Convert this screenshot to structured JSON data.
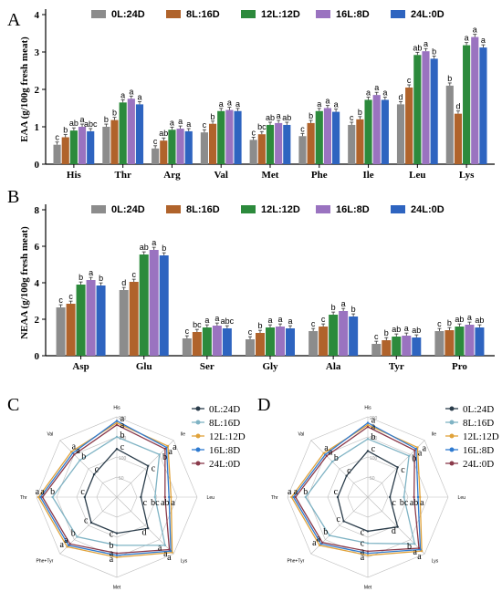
{
  "panels": {
    "A": "A",
    "B": "B",
    "C": "C",
    "D": "D"
  },
  "colors": {
    "0L:24D": "#8c8c8c",
    "8L:16D": "#b0632b",
    "12L:12D": "#2c8a3c",
    "16L:8D": "#9a73c0",
    "24L:0D": "#2e64c0"
  },
  "chart_data": [
    {
      "id": "A",
      "type": "bar",
      "ylabel": "EAA (g/100g fresh meat)",
      "ylim": [
        0,
        4
      ],
      "yticks": [
        "0",
        "1",
        "2",
        "3",
        "4"
      ],
      "legend": [
        "0L:24D",
        "8L:16D",
        "12L:12D",
        "16L:8D",
        "24L:0D"
      ],
      "categories": [
        "His",
        "Thr",
        "Arg",
        "Val",
        "Met",
        "Phe",
        "Ile",
        "Leu",
        "Lys"
      ],
      "series": [
        {
          "name": "0L:24D",
          "values": [
            0.52,
            1.0,
            0.42,
            0.85,
            0.65,
            0.75,
            1.05,
            1.6,
            2.1
          ],
          "letters": [
            "c",
            "b",
            "c",
            "c",
            "c",
            "c",
            "c",
            "d",
            "b"
          ]
        },
        {
          "name": "8L:16D",
          "values": [
            0.72,
            1.18,
            0.63,
            1.08,
            0.8,
            1.1,
            1.2,
            2.05,
            1.35
          ],
          "letters": [
            "b",
            "b",
            "ab",
            "b",
            "bc",
            "b",
            "b",
            "c",
            "d"
          ]
        },
        {
          "name": "12L:12D",
          "values": [
            0.9,
            1.65,
            0.92,
            1.42,
            1.05,
            1.42,
            1.72,
            2.92,
            3.18
          ],
          "letters": [
            "ab",
            "a",
            "a",
            "a",
            "ab",
            "a",
            "a",
            "ab",
            "a"
          ]
        },
        {
          "name": "16L:8D",
          "values": [
            1.0,
            1.75,
            0.95,
            1.45,
            1.1,
            1.5,
            1.85,
            3.02,
            3.4
          ],
          "letters": [
            "a",
            "a",
            "a",
            "a",
            "a",
            "a",
            "a",
            "a",
            "a"
          ]
        },
        {
          "name": "24L:0D",
          "values": [
            0.88,
            1.6,
            0.88,
            1.42,
            1.05,
            1.4,
            1.72,
            2.82,
            3.12
          ],
          "letters": [
            "abc",
            "a",
            "a",
            "a",
            "ab",
            "a",
            "a",
            "b",
            "a"
          ]
        }
      ]
    },
    {
      "id": "B",
      "type": "bar",
      "ylabel": "NEAA (g/100g fresh meat)",
      "ylim": [
        0,
        8
      ],
      "yticks": [
        "0",
        "2",
        "4",
        "6",
        "8"
      ],
      "legend": [
        "0L:24D",
        "8L:16D",
        "12L:12D",
        "16L:8D",
        "24L:0D"
      ],
      "categories": [
        "Asp",
        "Glu",
        "Ser",
        "Gly",
        "Ala",
        "Tyr",
        "Pro"
      ],
      "series": [
        {
          "name": "0L:24D",
          "values": [
            2.65,
            3.6,
            0.95,
            0.9,
            1.35,
            0.65,
            1.35
          ],
          "letters": [
            "c",
            "d",
            "c",
            "c",
            "c",
            "c",
            "c"
          ]
        },
        {
          "name": "8L:16D",
          "values": [
            2.85,
            4.05,
            1.3,
            1.25,
            1.6,
            0.85,
            1.4
          ],
          "letters": [
            "c",
            "c",
            "bc",
            "b",
            "c",
            "b",
            "b"
          ]
        },
        {
          "name": "12L:12D",
          "values": [
            3.9,
            5.55,
            1.55,
            1.55,
            2.25,
            1.05,
            1.6
          ],
          "letters": [
            "b",
            "ab",
            "a",
            "a",
            "b",
            "ab",
            "ab"
          ]
        },
        {
          "name": "16L:8D",
          "values": [
            4.15,
            5.8,
            1.65,
            1.6,
            2.45,
            1.1,
            1.7
          ],
          "letters": [
            "a",
            "a",
            "a",
            "a",
            "a",
            "a",
            "a"
          ]
        },
        {
          "name": "24L:0D",
          "values": [
            3.85,
            5.5,
            1.5,
            1.5,
            2.15,
            1.0,
            1.55
          ],
          "letters": [
            "b",
            "b",
            "abc",
            "a",
            "b",
            "ab",
            "ab"
          ]
        }
      ]
    },
    {
      "id": "C",
      "type": "radar",
      "axes": [
        "His",
        "Ile",
        "Leu",
        "Lys",
        "Met",
        "Phe+Tyr",
        "Thr",
        "Val"
      ],
      "ring_labels": [
        "50",
        "100",
        "150",
        "200"
      ],
      "max": 200,
      "legend": [
        "0L:24D",
        "8L:16D",
        "12L:12D",
        "16L:8D",
        "24L:0D"
      ],
      "series": [
        {
          "name": "0L:24D",
          "values": [
            120,
            110,
            60,
            110,
            90,
            90,
            80,
            80
          ]
        },
        {
          "name": "8L:16D",
          "values": [
            150,
            150,
            95,
            170,
            120,
            140,
            160,
            130
          ]
        },
        {
          "name": "12L:12D",
          "values": [
            185,
            180,
            135,
            195,
            150,
            175,
            195,
            160
          ]
        },
        {
          "name": "16L:8D",
          "values": [
            190,
            175,
            130,
            190,
            145,
            170,
            190,
            155
          ]
        },
        {
          "name": "24L:0D",
          "values": [
            180,
            170,
            120,
            185,
            140,
            165,
            185,
            150
          ]
        }
      ],
      "letters": [
        {
          "axis": 0,
          "r": 196,
          "t": "a"
        },
        {
          "axis": 0,
          "r": 180,
          "t": "a"
        },
        {
          "axis": 0,
          "r": 155,
          "t": "b"
        },
        {
          "axis": 0,
          "r": 125,
          "t": "c"
        },
        {
          "axis": 1,
          "r": 190,
          "t": "a"
        },
        {
          "axis": 1,
          "r": 175,
          "t": "a"
        },
        {
          "axis": 1,
          "r": 155,
          "t": "b"
        },
        {
          "axis": 1,
          "r": 115,
          "t": "c"
        },
        {
          "axis": 2,
          "r": 140,
          "t": "a"
        },
        {
          "axis": 2,
          "r": 120,
          "t": "ab"
        },
        {
          "axis": 2,
          "r": 95,
          "t": "bc"
        },
        {
          "axis": 2,
          "r": 70,
          "t": "c"
        },
        {
          "axis": 3,
          "r": 198,
          "t": "a"
        },
        {
          "axis": 3,
          "r": 185,
          "t": "a"
        },
        {
          "axis": 3,
          "r": 165,
          "t": "a"
        },
        {
          "axis": 3,
          "r": 110,
          "t": "d"
        },
        {
          "axis": 4,
          "r": 155,
          "t": "a"
        },
        {
          "axis": 4,
          "r": 140,
          "t": "a"
        },
        {
          "axis": 4,
          "r": 120,
          "t": "b"
        },
        {
          "axis": 4,
          "r": 92,
          "t": "c"
        },
        {
          "axis": 5,
          "r": 180,
          "t": "a"
        },
        {
          "axis": 5,
          "r": 165,
          "t": "a"
        },
        {
          "axis": 5,
          "r": 140,
          "t": "b"
        },
        {
          "axis": 5,
          "r": 95,
          "t": "c"
        },
        {
          "axis": 6,
          "r": 198,
          "t": "a"
        },
        {
          "axis": 6,
          "r": 185,
          "t": "a"
        },
        {
          "axis": 6,
          "r": 160,
          "t": "b"
        },
        {
          "axis": 6,
          "r": 85,
          "t": "c"
        },
        {
          "axis": 7,
          "r": 165,
          "t": "a"
        },
        {
          "axis": 7,
          "r": 150,
          "t": "a"
        },
        {
          "axis": 7,
          "r": 130,
          "t": "b"
        },
        {
          "axis": 7,
          "r": 85,
          "t": "c"
        }
      ]
    },
    {
      "id": "D",
      "type": "radar",
      "axes": [
        "His",
        "Ile",
        "Leu",
        "Lys",
        "Met",
        "Phe+Tyr",
        "Thr",
        "Val"
      ],
      "ring_labels": [
        "50",
        "100",
        "150",
        "200"
      ],
      "max": 200,
      "legend": [
        "0L:24D",
        "8L:16D",
        "12L:12D",
        "16L:8D",
        "24L:0D"
      ],
      "series": [
        {
          "name": "0L:24D",
          "values": [
            115,
            105,
            55,
            105,
            85,
            85,
            75,
            75
          ]
        },
        {
          "name": "8L:16D",
          "values": [
            145,
            145,
            90,
            165,
            115,
            135,
            155,
            125
          ]
        },
        {
          "name": "12L:12D",
          "values": [
            180,
            175,
            130,
            190,
            145,
            170,
            190,
            155
          ]
        },
        {
          "name": "16L:8D",
          "values": [
            185,
            170,
            125,
            185,
            140,
            165,
            185,
            150
          ]
        },
        {
          "name": "24L:0D",
          "values": [
            175,
            165,
            115,
            180,
            135,
            160,
            180,
            145
          ]
        }
      ],
      "letters": [
        {
          "axis": 0,
          "r": 192,
          "t": "a"
        },
        {
          "axis": 0,
          "r": 176,
          "t": "a"
        },
        {
          "axis": 0,
          "r": 150,
          "t": "b"
        },
        {
          "axis": 0,
          "r": 120,
          "t": "c"
        },
        {
          "axis": 1,
          "r": 185,
          "t": "a"
        },
        {
          "axis": 1,
          "r": 170,
          "t": "a"
        },
        {
          "axis": 1,
          "r": 150,
          "t": "b"
        },
        {
          "axis": 1,
          "r": 110,
          "t": "c"
        },
        {
          "axis": 2,
          "r": 135,
          "t": "a"
        },
        {
          "axis": 2,
          "r": 115,
          "t": "ab"
        },
        {
          "axis": 2,
          "r": 90,
          "t": "bc"
        },
        {
          "axis": 2,
          "r": 65,
          "t": "c"
        },
        {
          "axis": 3,
          "r": 195,
          "t": "a"
        },
        {
          "axis": 3,
          "r": 180,
          "t": "a"
        },
        {
          "axis": 3,
          "r": 160,
          "t": "b"
        },
        {
          "axis": 3,
          "r": 105,
          "t": "d"
        },
        {
          "axis": 4,
          "r": 150,
          "t": "a"
        },
        {
          "axis": 4,
          "r": 135,
          "t": "a"
        },
        {
          "axis": 4,
          "r": 115,
          "t": "c"
        },
        {
          "axis": 4,
          "r": 88,
          "t": "c"
        },
        {
          "axis": 5,
          "r": 175,
          "t": "a"
        },
        {
          "axis": 5,
          "r": 160,
          "t": "a"
        },
        {
          "axis": 5,
          "r": 135,
          "t": "b"
        },
        {
          "axis": 5,
          "r": 90,
          "t": "c"
        },
        {
          "axis": 6,
          "r": 195,
          "t": "a"
        },
        {
          "axis": 6,
          "r": 180,
          "t": "a"
        },
        {
          "axis": 6,
          "r": 155,
          "t": "b"
        },
        {
          "axis": 6,
          "r": 80,
          "t": "c"
        },
        {
          "axis": 7,
          "r": 160,
          "t": "a"
        },
        {
          "axis": 7,
          "r": 145,
          "t": "a"
        },
        {
          "axis": 7,
          "r": 125,
          "t": "b"
        },
        {
          "axis": 7,
          "r": 80,
          "t": "c"
        }
      ]
    }
  ]
}
